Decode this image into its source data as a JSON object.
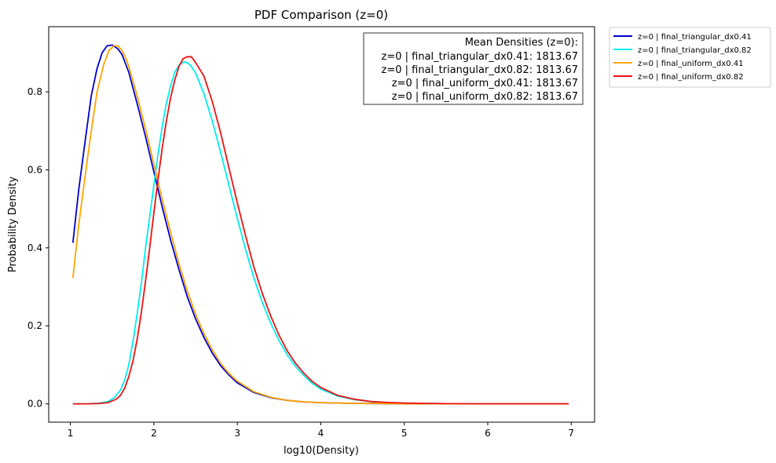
{
  "chart_data": {
    "type": "line",
    "title": "PDF Comparison (z=0)",
    "xlabel": "log10(Density)",
    "ylabel": "Probability Density",
    "xlim": [
      0.74,
      7.28
    ],
    "ylim": [
      -0.047,
      0.967
    ],
    "xticks": [
      1,
      2,
      3,
      4,
      5,
      6,
      7
    ],
    "xtick_labels": [
      "1",
      "2",
      "3",
      "4",
      "5",
      "6",
      "7"
    ],
    "yticks": [
      0.0,
      0.2,
      0.4,
      0.6,
      0.8
    ],
    "ytick_labels": [
      "0.0",
      "0.2",
      "0.4",
      "0.6",
      "0.8"
    ],
    "grid": false,
    "legend_position": "outside-top-right",
    "annotation": {
      "title": "Mean Densities (z=0):",
      "lines": [
        "z=0 | final_triangular_dx0.41: 1813.67",
        "z=0 | final_triangular_dx0.82: 1813.67",
        "z=0 | final_uniform_dx0.41: 1813.67",
        "z=0 | final_uniform_dx0.82: 1813.67"
      ]
    },
    "series": [
      {
        "name": "z=0 | final_triangular_dx0.41",
        "color": "#0000cd",
        "x": [
          1.03,
          1.1,
          1.18,
          1.25,
          1.32,
          1.38,
          1.44,
          1.5,
          1.57,
          1.62,
          1.7,
          1.8,
          1.9,
          2.0,
          2.1,
          2.2,
          2.3,
          2.4,
          2.5,
          2.6,
          2.7,
          2.8,
          2.9,
          3.0,
          3.2,
          3.4,
          3.6,
          3.8,
          4.0,
          4.3,
          4.6,
          5.0,
          5.5,
          6.0,
          6.5,
          6.97
        ],
        "y": [
          0.413,
          0.55,
          0.68,
          0.79,
          0.86,
          0.9,
          0.918,
          0.92,
          0.91,
          0.895,
          0.85,
          0.77,
          0.685,
          0.595,
          0.505,
          0.42,
          0.345,
          0.275,
          0.218,
          0.17,
          0.13,
          0.098,
          0.074,
          0.054,
          0.029,
          0.016,
          0.009,
          0.005,
          0.003,
          0.0015,
          0.0008,
          0.0003,
          0.0001,
          0.0,
          0.0,
          0.0
        ]
      },
      {
        "name": "z=0 | final_triangular_dx0.82",
        "color": "#00eeee",
        "x": [
          1.03,
          1.2,
          1.35,
          1.45,
          1.52,
          1.6,
          1.65,
          1.7,
          1.75,
          1.8,
          1.85,
          1.9,
          1.95,
          2.0,
          2.05,
          2.1,
          2.15,
          2.2,
          2.25,
          2.3,
          2.35,
          2.4,
          2.45,
          2.5,
          2.6,
          2.7,
          2.8,
          2.9,
          3.0,
          3.1,
          3.2,
          3.3,
          3.4,
          3.5,
          3.6,
          3.7,
          3.8,
          3.9,
          4.0,
          4.2,
          4.4,
          4.6,
          4.8,
          5.0,
          5.5,
          6.0,
          6.5,
          6.97
        ],
        "y": [
          0.0,
          0.0,
          0.002,
          0.006,
          0.015,
          0.035,
          0.06,
          0.1,
          0.16,
          0.23,
          0.31,
          0.4,
          0.48,
          0.56,
          0.64,
          0.71,
          0.77,
          0.815,
          0.85,
          0.868,
          0.876,
          0.875,
          0.865,
          0.848,
          0.795,
          0.725,
          0.645,
          0.56,
          0.475,
          0.395,
          0.322,
          0.26,
          0.207,
          0.162,
          0.125,
          0.095,
          0.072,
          0.052,
          0.038,
          0.02,
          0.011,
          0.006,
          0.003,
          0.002,
          0.0005,
          0.0001,
          0.0,
          0.0
        ]
      },
      {
        "name": "z=0 | final_uniform_dx0.41",
        "color": "#ffa500",
        "x": [
          1.03,
          1.1,
          1.18,
          1.25,
          1.32,
          1.4,
          1.46,
          1.52,
          1.57,
          1.62,
          1.66,
          1.7,
          1.8,
          1.9,
          2.0,
          2.1,
          2.2,
          2.3,
          2.4,
          2.5,
          2.6,
          2.7,
          2.8,
          2.9,
          3.0,
          3.2,
          3.4,
          3.6,
          3.8,
          4.0,
          4.3,
          4.6,
          5.0,
          5.5,
          6.0,
          6.5,
          6.97
        ],
        "y": [
          0.323,
          0.46,
          0.59,
          0.7,
          0.8,
          0.87,
          0.905,
          0.918,
          0.918,
          0.905,
          0.888,
          0.865,
          0.79,
          0.705,
          0.615,
          0.525,
          0.44,
          0.36,
          0.29,
          0.23,
          0.18,
          0.138,
          0.104,
          0.078,
          0.058,
          0.031,
          0.017,
          0.009,
          0.005,
          0.003,
          0.0015,
          0.0008,
          0.0003,
          0.0001,
          0.0,
          0.0,
          0.0
        ]
      },
      {
        "name": "z=0 | final_uniform_dx0.82",
        "color": "#ee1111",
        "x": [
          1.03,
          1.2,
          1.35,
          1.45,
          1.55,
          1.6,
          1.65,
          1.7,
          1.75,
          1.8,
          1.85,
          1.9,
          1.95,
          2.0,
          2.05,
          2.1,
          2.15,
          2.2,
          2.25,
          2.3,
          2.35,
          2.4,
          2.45,
          2.5,
          2.6,
          2.7,
          2.8,
          2.9,
          3.0,
          3.1,
          3.2,
          3.3,
          3.4,
          3.5,
          3.6,
          3.7,
          3.8,
          3.9,
          4.0,
          4.2,
          4.4,
          4.6,
          4.8,
          5.0,
          5.5,
          6.0,
          6.5,
          6.97
        ],
        "y": [
          0.0,
          0.0,
          0.001,
          0.003,
          0.012,
          0.022,
          0.04,
          0.07,
          0.11,
          0.165,
          0.235,
          0.315,
          0.4,
          0.49,
          0.575,
          0.655,
          0.725,
          0.785,
          0.83,
          0.865,
          0.885,
          0.89,
          0.89,
          0.875,
          0.84,
          0.775,
          0.695,
          0.605,
          0.515,
          0.43,
          0.35,
          0.283,
          0.225,
          0.176,
          0.135,
          0.103,
          0.078,
          0.057,
          0.042,
          0.022,
          0.012,
          0.006,
          0.0035,
          0.002,
          0.0005,
          0.0001,
          0.0,
          0.0
        ]
      }
    ]
  }
}
